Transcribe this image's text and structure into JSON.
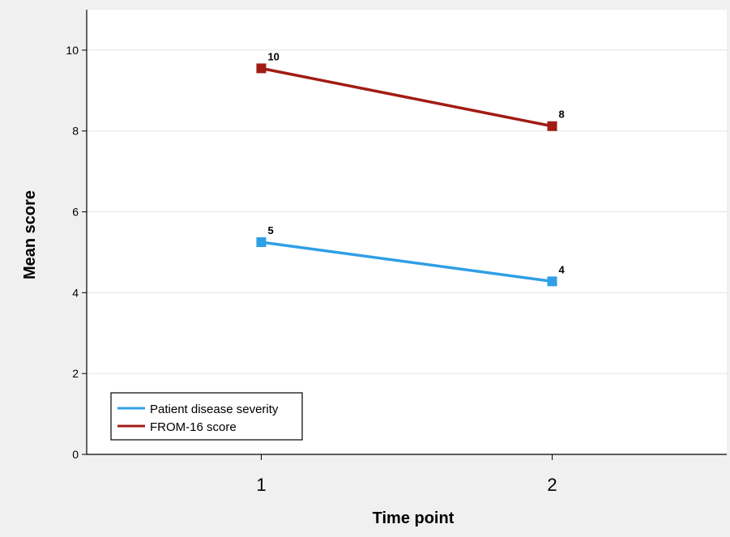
{
  "chart_data": {
    "type": "line",
    "xlabel": "Time point",
    "ylabel": "Mean score",
    "x": [
      1,
      2
    ],
    "xlim": [
      0.4,
      2.6
    ],
    "ylim": [
      0,
      11
    ],
    "yticks": [
      0,
      2,
      4,
      6,
      8,
      10
    ],
    "xticks": [
      1,
      2
    ],
    "grid": "horizontal",
    "legend_position": "bottom-left",
    "series": [
      {
        "name": "Patient disease severity",
        "values": [
          5.25,
          4.28
        ],
        "data_labels": [
          "5",
          "4"
        ],
        "color": "#2f9fe6",
        "marker": "square"
      },
      {
        "name": "FROM-16 score",
        "values": [
          9.55,
          8.12
        ],
        "data_labels": [
          "10",
          "8"
        ],
        "color": "#a11c16",
        "marker": "square"
      }
    ]
  }
}
